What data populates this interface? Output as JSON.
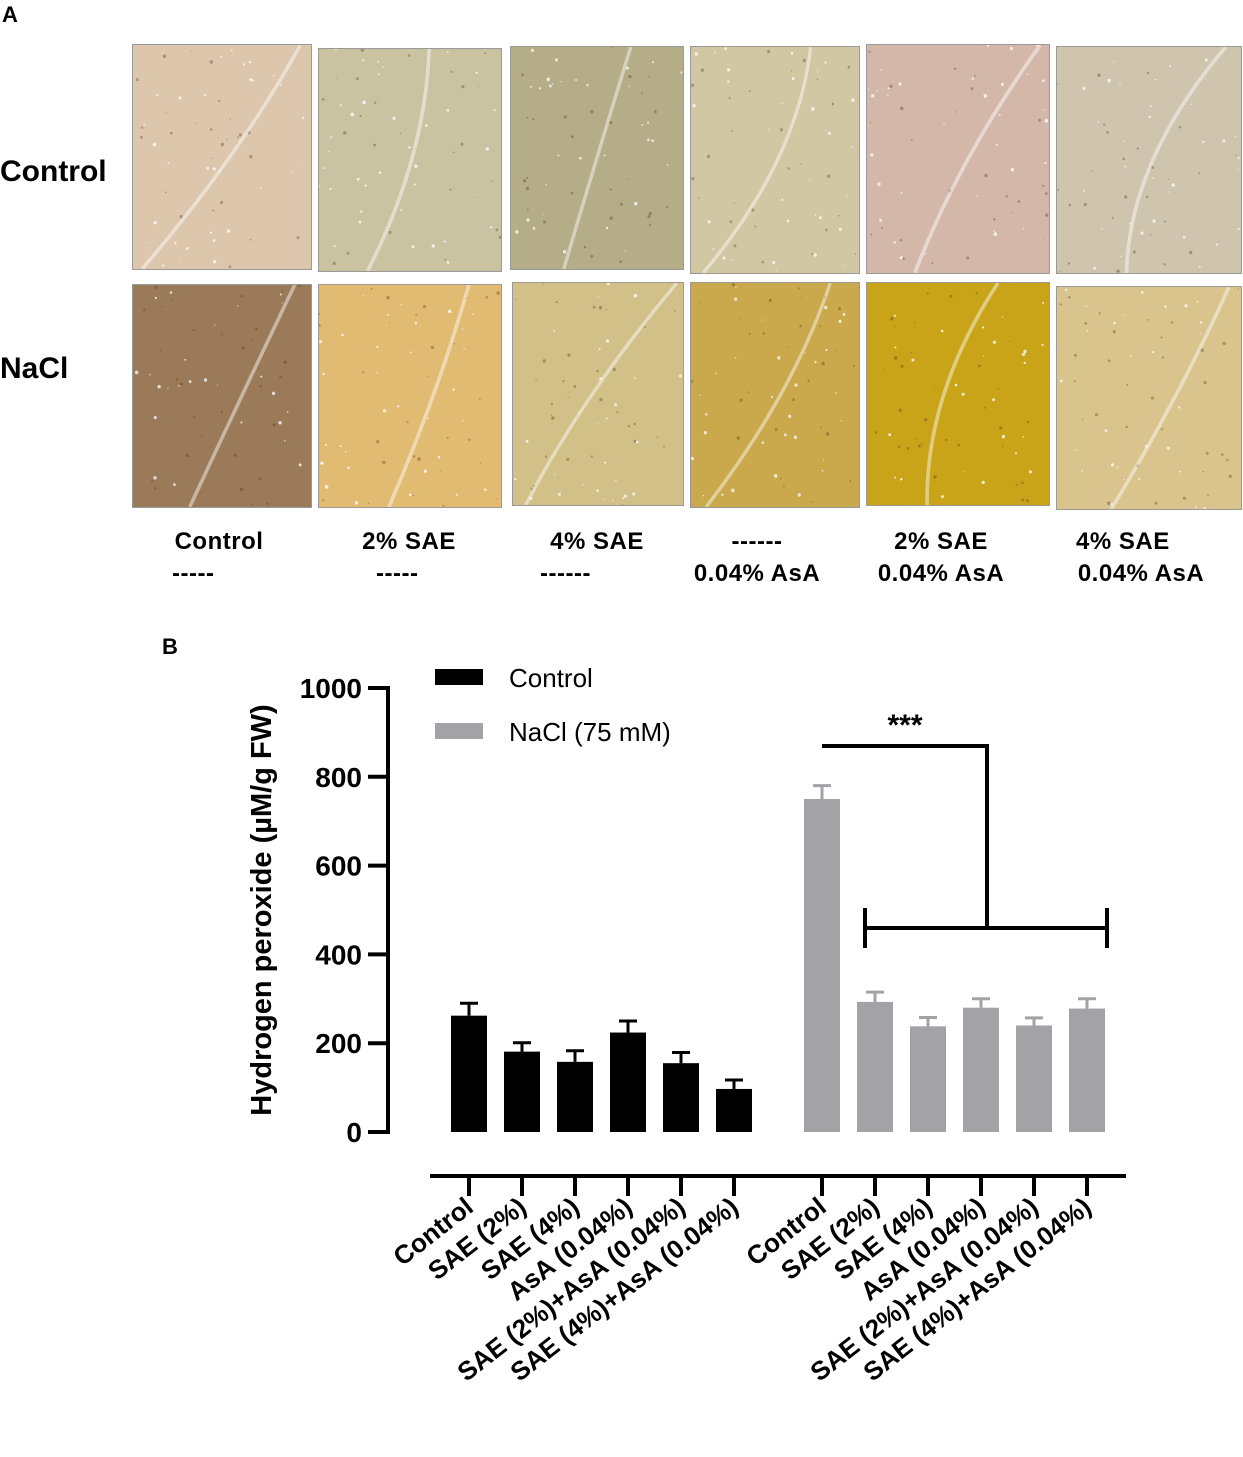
{
  "panel_a": {
    "letter": "A",
    "row_labels": [
      "Control",
      "NaCl"
    ],
    "column_labels": [
      {
        "line1": "Control",
        "line2": "-----"
      },
      {
        "line1": "2% SAE",
        "line2": "-----"
      },
      {
        "line1": "4% SAE",
        "line2": "------"
      },
      {
        "line1": "------",
        "line2": "0.04% AsA"
      },
      {
        "line1": "2% SAE",
        "line2": "0.04% AsA"
      },
      {
        "line1": "4% SAE",
        "line2": "0.04% AsA"
      }
    ],
    "micrograph_colors": [
      [
        "#dcc6ac",
        "#c9c3a2",
        "#b5ac88",
        "#d2c7a3",
        "#d3b8aa",
        "#cfc4ae"
      ],
      [
        "#9a7a58",
        "#e2bb73",
        "#d2c089",
        "#c9a94c",
        "#c9a418",
        "#d8c48c"
      ]
    ]
  },
  "panel_b": {
    "letter": "B",
    "legend": [
      "Control",
      "NaCl (75 mM)"
    ],
    "significance": "***"
  },
  "chart_data": {
    "type": "bar",
    "ylabel": "Hydrogen peroxide (µM/g FW)",
    "xlabel": "",
    "ylim": [
      0,
      1000
    ],
    "yticks": [
      0,
      200,
      400,
      600,
      800,
      1000
    ],
    "series": [
      {
        "name": "Control",
        "color": "#000000",
        "categories": [
          "Control",
          "SAE (2%)",
          "SAE (4%)",
          "AsA (0.04%)",
          "SAE (2%)+AsA (0.04%)",
          "SAE (4%)+AsA (0.04%)"
        ],
        "values": [
          262,
          181,
          158,
          224,
          155,
          97
        ],
        "errors": [
          28,
          20,
          25,
          26,
          24,
          20
        ]
      },
      {
        "name": "NaCl (75 mM)",
        "color": "#a3a3a7",
        "categories": [
          "Control",
          "SAE (2%)",
          "SAE (4%)",
          "AsA (0.04%)",
          "SAE (2%)+AsA (0.04%)",
          "SAE (4%)+AsA (0.04%)"
        ],
        "values": [
          750,
          293,
          238,
          280,
          240,
          278
        ],
        "errors": [
          30,
          22,
          20,
          20,
          17,
          22
        ]
      }
    ],
    "annotations": [
      {
        "text": "***",
        "from_series": 1,
        "from_index": 0,
        "to_indices": [
          1,
          5
        ]
      }
    ],
    "legend_position": "top-left",
    "grid": false
  }
}
